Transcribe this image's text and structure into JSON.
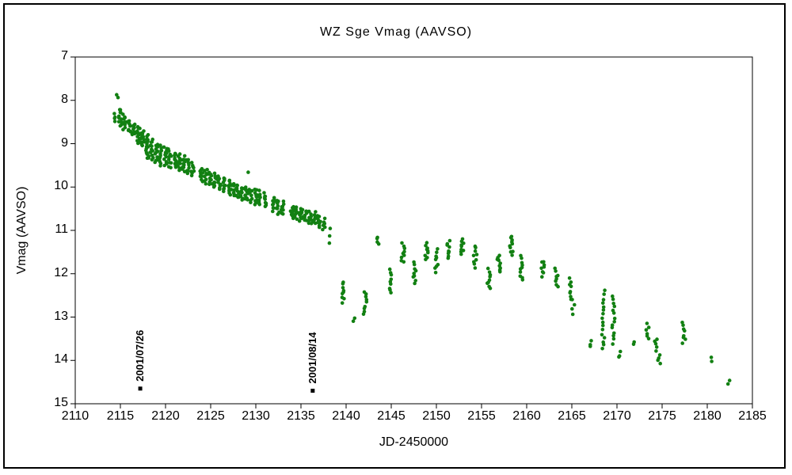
{
  "chart_data": {
    "type": "scatter",
    "title": "WZ Sge   Vmag (AAVSO)",
    "xlabel": "JD-2450000",
    "ylabel": "Vmag (AAVSO)",
    "x_ticks": [
      2110,
      2115,
      2120,
      2125,
      2130,
      2135,
      2140,
      2145,
      2150,
      2155,
      2160,
      2165,
      2170,
      2175,
      2180,
      2185
    ],
    "y_ticks": [
      7,
      8,
      9,
      10,
      11,
      12,
      13,
      14,
      15
    ],
    "xlim": [
      2110,
      2185
    ],
    "ylim_top": 7,
    "ylim_bottom": 15,
    "y_inverted": true,
    "point_color": "#128012",
    "frame_color": "#000000",
    "clusters": [
      [
        2114.35,
        8.3,
        8.5,
        4
      ],
      [
        2114.6,
        7.85,
        7.95,
        2
      ],
      [
        2115.0,
        8.2,
        8.6,
        12
      ],
      [
        2115.45,
        8.35,
        8.65,
        10
      ],
      [
        2116.0,
        8.45,
        8.75,
        10
      ],
      [
        2116.45,
        8.55,
        8.8,
        9
      ],
      [
        2117.0,
        8.6,
        9.0,
        14
      ],
      [
        2117.45,
        8.7,
        9.05,
        12
      ],
      [
        2118.0,
        8.8,
        9.35,
        16
      ],
      [
        2118.45,
        8.9,
        9.35,
        12
      ],
      [
        2119.0,
        9.0,
        9.45,
        13
      ],
      [
        2119.45,
        9.05,
        9.5,
        11
      ],
      [
        2120.0,
        9.1,
        9.5,
        12
      ],
      [
        2120.45,
        9.15,
        9.55,
        10
      ],
      [
        2121.0,
        9.2,
        9.55,
        10
      ],
      [
        2121.45,
        9.25,
        9.6,
        9
      ],
      [
        2122.0,
        9.3,
        9.65,
        10
      ],
      [
        2122.45,
        9.35,
        9.7,
        8
      ],
      [
        2123.0,
        9.45,
        9.75,
        8
      ],
      [
        2124.0,
        9.55,
        9.85,
        9
      ],
      [
        2124.45,
        9.6,
        9.9,
        8
      ],
      [
        2125.0,
        9.65,
        9.95,
        10
      ],
      [
        2125.45,
        9.7,
        10.0,
        8
      ],
      [
        2126.0,
        9.75,
        10.05,
        10
      ],
      [
        2126.45,
        9.8,
        10.1,
        9
      ],
      [
        2127.0,
        9.85,
        10.15,
        10
      ],
      [
        2127.45,
        9.9,
        10.2,
        8
      ],
      [
        2128.0,
        9.95,
        10.25,
        10
      ],
      [
        2128.45,
        10.0,
        10.3,
        8
      ],
      [
        2129.2,
        9.6,
        9.68,
        1
      ],
      [
        2129.0,
        10.0,
        10.32,
        10
      ],
      [
        2129.45,
        10.05,
        10.35,
        8
      ],
      [
        2130.0,
        10.05,
        10.38,
        10
      ],
      [
        2130.45,
        10.1,
        10.4,
        8
      ],
      [
        2131.0,
        10.15,
        10.45,
        9
      ],
      [
        2132.0,
        10.25,
        10.55,
        9
      ],
      [
        2132.45,
        10.3,
        10.6,
        8
      ],
      [
        2133.0,
        10.35,
        10.62,
        8
      ],
      [
        2134.0,
        10.45,
        10.7,
        10
      ],
      [
        2134.45,
        10.48,
        10.75,
        8
      ],
      [
        2135.0,
        10.5,
        10.78,
        10
      ],
      [
        2135.45,
        10.55,
        10.8,
        8
      ],
      [
        2136.0,
        10.55,
        10.85,
        10
      ],
      [
        2136.45,
        10.6,
        10.85,
        8
      ],
      [
        2137.0,
        10.65,
        10.92,
        10
      ],
      [
        2137.5,
        10.75,
        11.0,
        6
      ],
      [
        2138.2,
        10.95,
        11.3,
        3
      ],
      [
        2139.6,
        12.2,
        12.65,
        9
      ],
      [
        2140.8,
        13.0,
        13.12,
        2
      ],
      [
        2142.1,
        12.4,
        12.95,
        9
      ],
      [
        2143.6,
        11.15,
        11.3,
        4
      ],
      [
        2144.9,
        11.9,
        12.45,
        9
      ],
      [
        2146.3,
        11.3,
        11.75,
        9
      ],
      [
        2147.6,
        11.75,
        12.2,
        9
      ],
      [
        2148.9,
        11.3,
        11.65,
        9
      ],
      [
        2150.0,
        11.45,
        11.95,
        9
      ],
      [
        2151.3,
        11.25,
        11.65,
        9
      ],
      [
        2152.9,
        11.2,
        11.55,
        9
      ],
      [
        2154.3,
        11.35,
        11.85,
        9
      ],
      [
        2155.8,
        11.9,
        12.35,
        9
      ],
      [
        2156.9,
        11.55,
        11.95,
        9
      ],
      [
        2158.3,
        11.15,
        11.55,
        10
      ],
      [
        2159.4,
        11.6,
        12.15,
        10
      ],
      [
        2161.8,
        11.7,
        12.05,
        8
      ],
      [
        2163.3,
        11.9,
        12.3,
        8
      ],
      [
        2164.9,
        12.1,
        12.6,
        8
      ],
      [
        2165.2,
        12.6,
        12.95,
        4
      ],
      [
        2167.0,
        13.55,
        13.68,
        3
      ],
      [
        2168.5,
        12.4,
        13.75,
        16
      ],
      [
        2169.6,
        12.5,
        13.6,
        14
      ],
      [
        2170.2,
        13.8,
        13.95,
        3
      ],
      [
        2172.0,
        13.55,
        13.65,
        2
      ],
      [
        2173.4,
        13.15,
        13.5,
        6
      ],
      [
        2174.3,
        13.5,
        13.78,
        5
      ],
      [
        2174.7,
        13.85,
        14.1,
        4
      ],
      [
        2177.4,
        13.15,
        13.6,
        8
      ],
      [
        2180.6,
        13.95,
        14.05,
        2
      ],
      [
        2182.4,
        14.45,
        14.55,
        2
      ]
    ],
    "annotations": [
      {
        "label": "2001/07/26",
        "x": 2117.2,
        "marker_mag": 14.65,
        "marker_color": "#000000"
      },
      {
        "label": "2001/08/14",
        "x": 2136.3,
        "marker_mag": 14.7,
        "marker_color": "#000000"
      }
    ]
  }
}
